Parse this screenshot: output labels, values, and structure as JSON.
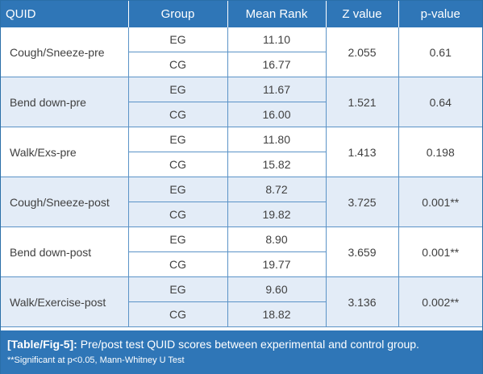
{
  "table": {
    "headers": [
      "QUID",
      "Group",
      "Mean Rank",
      "Z value",
      "p-value"
    ],
    "rows": [
      {
        "quid": "Cough/Sneeze-pre",
        "eg_rank": "11.10",
        "cg_rank": "16.77",
        "z": "2.055",
        "p": "0.61"
      },
      {
        "quid": "Bend down-pre",
        "eg_rank": "11.67",
        "cg_rank": "16.00",
        "z": "1.521",
        "p": "0.64"
      },
      {
        "quid": "Walk/Exs-pre",
        "eg_rank": "11.80",
        "cg_rank": "15.82",
        "z": "1.413",
        "p": "0.198"
      },
      {
        "quid": "Cough/Sneeze-post",
        "eg_rank": "8.72",
        "cg_rank": "19.82",
        "z": "3.725",
        "p": "0.001**"
      },
      {
        "quid": "Bend down-post",
        "eg_rank": "8.90",
        "cg_rank": "19.77",
        "z": "3.659",
        "p": "0.001**"
      },
      {
        "quid": "Walk/Exercise-post",
        "eg_rank": "9.60",
        "cg_rank": "18.82",
        "z": "3.136",
        "p": "0.002**"
      }
    ],
    "group_labels": {
      "eg": "EG",
      "cg": "CG"
    }
  },
  "caption": {
    "label": "[Table/Fig-5]:",
    "text": "Pre/post test QUID scores between experimental and control group.",
    "note": "**Significant at p<0.05, Mann-Whitney U Test"
  },
  "colors": {
    "header_bg": "#2f76b7",
    "band_bg": "#e3ecf7",
    "border": "#5b93c7"
  }
}
